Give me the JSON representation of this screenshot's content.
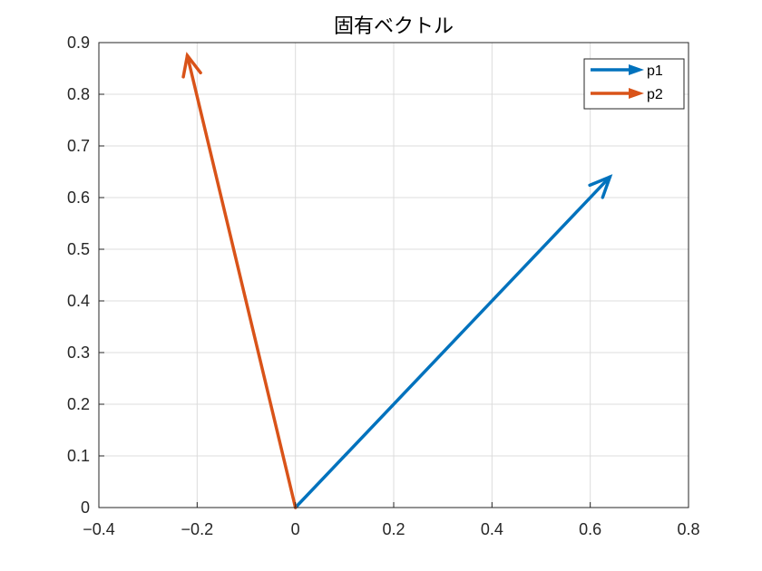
{
  "chart_data": {
    "type": "quiver",
    "title": "固有ベクトル",
    "xlabel": "",
    "ylabel": "",
    "xlim": [
      -0.4,
      0.8
    ],
    "ylim": [
      0,
      0.9
    ],
    "grid": true,
    "legend_position": "top-right",
    "x_ticks": [
      "−0.4",
      "−0.2",
      "0",
      "0.2",
      "0.4",
      "0.6",
      "0.8"
    ],
    "x_tick_values": [
      -0.4,
      -0.2,
      0,
      0.2,
      0.4,
      0.6,
      0.8
    ],
    "y_ticks": [
      "0",
      "0.1",
      "0.2",
      "0.3",
      "0.4",
      "0.5",
      "0.6",
      "0.7",
      "0.8",
      "0.9"
    ],
    "y_tick_values": [
      0,
      0.1,
      0.2,
      0.3,
      0.4,
      0.5,
      0.6,
      0.7,
      0.8,
      0.9
    ],
    "series": [
      {
        "name": "p1",
        "color": "#0072BD",
        "x0": 0,
        "y0": 0,
        "x1": 0.64,
        "y1": 0.64
      },
      {
        "name": "p2",
        "color": "#D95319",
        "x0": 0,
        "y0": 0,
        "x1": -0.22,
        "y1": 0.875
      }
    ]
  }
}
